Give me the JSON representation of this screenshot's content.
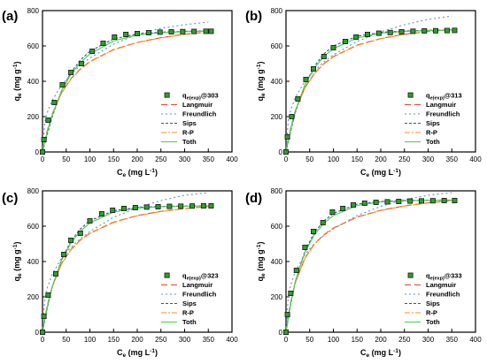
{
  "chart_data": [
    {
      "type": "scatter",
      "panel_label": "(a)",
      "xlabel_main": "C",
      "xlabel_sub": "e",
      "xlabel_unit": " (mg L",
      "xlabel_unit_sup": "-1",
      "xlabel_close": ")",
      "ylabel_main": "q",
      "ylabel_sub": "e",
      "ylabel_unit": " (mg g",
      "ylabel_unit_sup": "-1",
      "ylabel_close": ")",
      "xlim": [
        0,
        400
      ],
      "ylim": [
        0,
        800
      ],
      "xticks": [
        "0",
        "50",
        "100",
        "150",
        "200",
        "250",
        "300",
        "350",
        "400"
      ],
      "yticks": [
        "0",
        "200",
        "400",
        "600",
        "800"
      ],
      "experimental": {
        "legend_main": "q",
        "legend_sub": "e(exp)",
        "legend_suffix": "@303",
        "color": "#2ca02c",
        "x": [
          0,
          3,
          12,
          25,
          42,
          60,
          82,
          105,
          128,
          152,
          176,
          200,
          224,
          248,
          272,
          296,
          320,
          345,
          356
        ],
        "y": [
          0,
          70,
          180,
          280,
          380,
          450,
          500,
          570,
          615,
          650,
          665,
          670,
          675,
          678,
          680,
          681,
          682,
          683,
          683
        ]
      },
      "series": [
        {
          "name": "Langmuir",
          "color": "#e8432d",
          "dash": "7,4",
          "x": [
            0,
            5,
            10,
            20,
            40,
            60,
            80,
            100,
            150,
            200,
            250,
            300,
            350
          ],
          "y": [
            0,
            66,
            122,
            212,
            335,
            415,
            470,
            512,
            580,
            620,
            647,
            666,
            680
          ]
        },
        {
          "name": "Freundlich",
          "color": "#5b8fd6",
          "dash": "2,3",
          "x": [
            0,
            5,
            10,
            20,
            40,
            60,
            80,
            100,
            150,
            200,
            250,
            300,
            350
          ],
          "y": [
            0,
            171,
            223,
            290,
            377,
            438,
            490,
            532,
            610,
            665,
            700,
            720,
            735
          ]
        },
        {
          "name": "Sips",
          "color": "#1f5f8b",
          "dash": "3,2",
          "x": [
            0,
            5,
            10,
            20,
            40,
            60,
            80,
            100,
            150,
            200,
            250,
            300,
            350
          ],
          "y": [
            0,
            50,
            100,
            195,
            345,
            450,
            520,
            570,
            640,
            668,
            678,
            683,
            686
          ]
        },
        {
          "name": "R-P",
          "color": "#ff8c1a",
          "dash": "6,2,2,2",
          "x": [
            0,
            5,
            10,
            20,
            40,
            60,
            80,
            100,
            150,
            200,
            250,
            300,
            350
          ],
          "y": [
            0,
            65,
            120,
            208,
            332,
            412,
            468,
            510,
            578,
            619,
            646,
            665,
            679
          ]
        },
        {
          "name": "Toth",
          "color": "#4ec94e",
          "dash": "",
          "x": [
            0,
            5,
            10,
            20,
            40,
            60,
            80,
            100,
            150,
            200,
            250,
            300,
            350
          ],
          "y": [
            0,
            58,
            112,
            205,
            345,
            440,
            505,
            555,
            628,
            662,
            675,
            681,
            684
          ]
        }
      ]
    },
    {
      "type": "scatter",
      "panel_label": "(b)",
      "xlabel_main": "C",
      "xlabel_sub": "e",
      "xlabel_unit": " (mg L",
      "xlabel_unit_sup": "-1",
      "xlabel_close": ")",
      "ylabel_main": "q",
      "ylabel_sub": "e",
      "ylabel_unit": " (mg g",
      "ylabel_unit_sup": "-1",
      "ylabel_close": ")",
      "xlim": [
        0,
        400
      ],
      "ylim": [
        0,
        800
      ],
      "xticks": [
        "0",
        "50",
        "100",
        "150",
        "200",
        "250",
        "300",
        "350",
        "400"
      ],
      "yticks": [
        "0",
        "200",
        "400",
        "600",
        "800"
      ],
      "experimental": {
        "legend_main": "q",
        "legend_sub": "e(exp)",
        "legend_suffix": "@313",
        "color": "#2ca02c",
        "x": [
          0,
          3,
          12,
          25,
          42,
          58,
          80,
          100,
          125,
          148,
          172,
          196,
          220,
          244,
          268,
          292,
          316,
          340,
          356
        ],
        "y": [
          0,
          85,
          200,
          300,
          410,
          470,
          540,
          590,
          625,
          650,
          665,
          672,
          676,
          680,
          683,
          685,
          686,
          687,
          688
        ]
      },
      "series": [
        {
          "name": "Langmuir",
          "color": "#e8432d",
          "dash": "7,4",
          "x": [
            0,
            5,
            10,
            20,
            40,
            60,
            80,
            100,
            150,
            200,
            250,
            300,
            350
          ],
          "y": [
            0,
            75,
            138,
            236,
            365,
            445,
            500,
            540,
            605,
            642,
            666,
            682,
            694
          ]
        },
        {
          "name": "Freundlich",
          "color": "#5b8fd6",
          "dash": "2,3",
          "x": [
            0,
            5,
            10,
            20,
            40,
            60,
            80,
            100,
            150,
            200,
            250,
            300,
            350
          ],
          "y": [
            0,
            185,
            240,
            310,
            400,
            460,
            510,
            550,
            625,
            680,
            720,
            750,
            770
          ]
        },
        {
          "name": "Sips",
          "color": "#1f5f8b",
          "dash": "3,2",
          "x": [
            0,
            5,
            10,
            20,
            40,
            60,
            80,
            100,
            150,
            200,
            250,
            300,
            350
          ],
          "y": [
            0,
            60,
            120,
            225,
            380,
            485,
            555,
            600,
            655,
            677,
            685,
            689,
            691
          ]
        },
        {
          "name": "R-P",
          "color": "#ff8c1a",
          "dash": "6,2,2,2",
          "x": [
            0,
            5,
            10,
            20,
            40,
            60,
            80,
            100,
            150,
            200,
            250,
            300,
            350
          ],
          "y": [
            0,
            74,
            136,
            233,
            362,
            443,
            498,
            538,
            603,
            641,
            665,
            681,
            693
          ]
        },
        {
          "name": "Toth",
          "color": "#4ec94e",
          "dash": "",
          "x": [
            0,
            5,
            10,
            20,
            40,
            60,
            80,
            100,
            150,
            200,
            250,
            300,
            350
          ],
          "y": [
            0,
            68,
            130,
            235,
            380,
            475,
            540,
            585,
            645,
            672,
            682,
            687,
            690
          ]
        }
      ]
    },
    {
      "type": "scatter",
      "panel_label": "(c)",
      "xlabel_main": "C",
      "xlabel_sub": "e",
      "xlabel_unit": " (mg L",
      "xlabel_unit_sup": "-1",
      "xlabel_close": ")",
      "ylabel_main": "q",
      "ylabel_sub": "e",
      "ylabel_unit": " (mg g",
      "ylabel_unit_sup": "-1",
      "ylabel_close": ")",
      "xlim": [
        0,
        400
      ],
      "ylim": [
        0,
        800
      ],
      "xticks": [
        "0",
        "50",
        "100",
        "150",
        "200",
        "250",
        "300",
        "350",
        "400"
      ],
      "yticks": [
        "0",
        "200",
        "400",
        "600",
        "800"
      ],
      "experimental": {
        "legend_main": "q",
        "legend_sub": "e(exp)",
        "legend_suffix": "@323",
        "color": "#2ca02c",
        "x": [
          0,
          3,
          12,
          28,
          45,
          60,
          80,
          100,
          125,
          148,
          172,
          196,
          220,
          244,
          268,
          292,
          316,
          340,
          356
        ],
        "y": [
          0,
          90,
          210,
          330,
          440,
          520,
          560,
          630,
          670,
          690,
          700,
          705,
          708,
          710,
          712,
          713,
          714,
          715,
          715
        ]
      },
      "series": [
        {
          "name": "Langmuir",
          "color": "#e8432d",
          "dash": "7,4",
          "x": [
            0,
            5,
            10,
            20,
            40,
            60,
            80,
            100,
            150,
            200,
            250,
            300,
            350
          ],
          "y": [
            0,
            82,
            150,
            255,
            388,
            468,
            522,
            560,
            623,
            660,
            684,
            700,
            712
          ]
        },
        {
          "name": "Freundlich",
          "color": "#5b8fd6",
          "dash": "2,3",
          "x": [
            0,
            5,
            10,
            20,
            40,
            60,
            80,
            100,
            150,
            200,
            250,
            300,
            350
          ],
          "y": [
            0,
            195,
            252,
            325,
            420,
            480,
            530,
            570,
            650,
            705,
            745,
            775,
            790
          ]
        },
        {
          "name": "Sips",
          "color": "#1f5f8b",
          "dash": "3,2",
          "x": [
            0,
            5,
            10,
            20,
            40,
            60,
            80,
            100,
            150,
            200,
            250,
            300,
            350
          ],
          "y": [
            0,
            68,
            135,
            250,
            410,
            515,
            585,
            630,
            688,
            706,
            712,
            714,
            715
          ]
        },
        {
          "name": "R-P",
          "color": "#ff8c1a",
          "dash": "6,2,2,2",
          "x": [
            0,
            5,
            10,
            20,
            40,
            60,
            80,
            100,
            150,
            200,
            250,
            300,
            350
          ],
          "y": [
            0,
            80,
            148,
            252,
            385,
            466,
            520,
            558,
            621,
            659,
            683,
            699,
            711
          ]
        },
        {
          "name": "Toth",
          "color": "#4ec94e",
          "dash": "",
          "x": [
            0,
            5,
            10,
            20,
            40,
            60,
            80,
            100,
            150,
            200,
            250,
            300,
            350
          ],
          "y": [
            0,
            74,
            142,
            255,
            405,
            505,
            572,
            618,
            680,
            702,
            710,
            713,
            715
          ]
        }
      ]
    },
    {
      "type": "scatter",
      "panel_label": "(d)",
      "xlabel_main": "C",
      "xlabel_sub": "e",
      "xlabel_unit": " (mg L",
      "xlabel_unit_sup": "-1",
      "xlabel_close": ")",
      "ylabel_main": "q",
      "ylabel_sub": "e",
      "ylabel_unit": " (mg g",
      "ylabel_unit_sup": "-1",
      "ylabel_close": ")",
      "xlim": [
        0,
        400
      ],
      "ylim": [
        0,
        800
      ],
      "xticks": [
        "0",
        "50",
        "100",
        "150",
        "200",
        "250",
        "300",
        "350",
        "400"
      ],
      "yticks": [
        "0",
        "200",
        "400",
        "600",
        "800"
      ],
      "experimental": {
        "legend_main": "q",
        "legend_sub": "e(exp)",
        "legend_suffix": "@333",
        "color": "#2ca02c",
        "x": [
          0,
          3,
          10,
          22,
          40,
          58,
          78,
          98,
          120,
          142,
          166,
          190,
          214,
          238,
          262,
          286,
          310,
          334,
          356
        ],
        "y": [
          0,
          100,
          220,
          350,
          480,
          570,
          620,
          680,
          700,
          720,
          730,
          735,
          738,
          740,
          742,
          743,
          744,
          745,
          745
        ]
      },
      "series": [
        {
          "name": "Langmuir",
          "color": "#e8432d",
          "dash": "7,4",
          "x": [
            0,
            5,
            10,
            20,
            40,
            60,
            80,
            100,
            150,
            200,
            250,
            300,
            350
          ],
          "y": [
            0,
            95,
            172,
            285,
            420,
            500,
            552,
            590,
            652,
            690,
            715,
            732,
            745
          ]
        },
        {
          "name": "Freundlich",
          "color": "#5b8fd6",
          "dash": "2,3",
          "x": [
            0,
            5,
            10,
            20,
            40,
            60,
            80,
            100,
            150,
            200,
            250,
            300,
            350
          ],
          "y": [
            0,
            210,
            270,
            345,
            440,
            500,
            548,
            585,
            660,
            712,
            750,
            775,
            790
          ]
        },
        {
          "name": "Sips",
          "color": "#1f5f8b",
          "dash": "3,2",
          "x": [
            0,
            5,
            10,
            20,
            40,
            60,
            80,
            100,
            150,
            200,
            250,
            300,
            350
          ],
          "y": [
            0,
            80,
            158,
            290,
            460,
            565,
            630,
            672,
            725,
            740,
            745,
            747,
            748
          ]
        },
        {
          "name": "R-P",
          "color": "#ff8c1a",
          "dash": "6,2,2,2",
          "x": [
            0,
            5,
            10,
            20,
            40,
            60,
            80,
            100,
            150,
            200,
            250,
            300,
            350
          ],
          "y": [
            0,
            93,
            170,
            282,
            418,
            498,
            550,
            588,
            650,
            689,
            714,
            731,
            744
          ]
        },
        {
          "name": "Toth",
          "color": "#4ec94e",
          "dash": "",
          "x": [
            0,
            5,
            10,
            20,
            40,
            60,
            80,
            100,
            150,
            200,
            250,
            300,
            350
          ],
          "y": [
            0,
            85,
            165,
            292,
            452,
            552,
            617,
            660,
            717,
            737,
            743,
            746,
            747
          ]
        }
      ]
    }
  ]
}
